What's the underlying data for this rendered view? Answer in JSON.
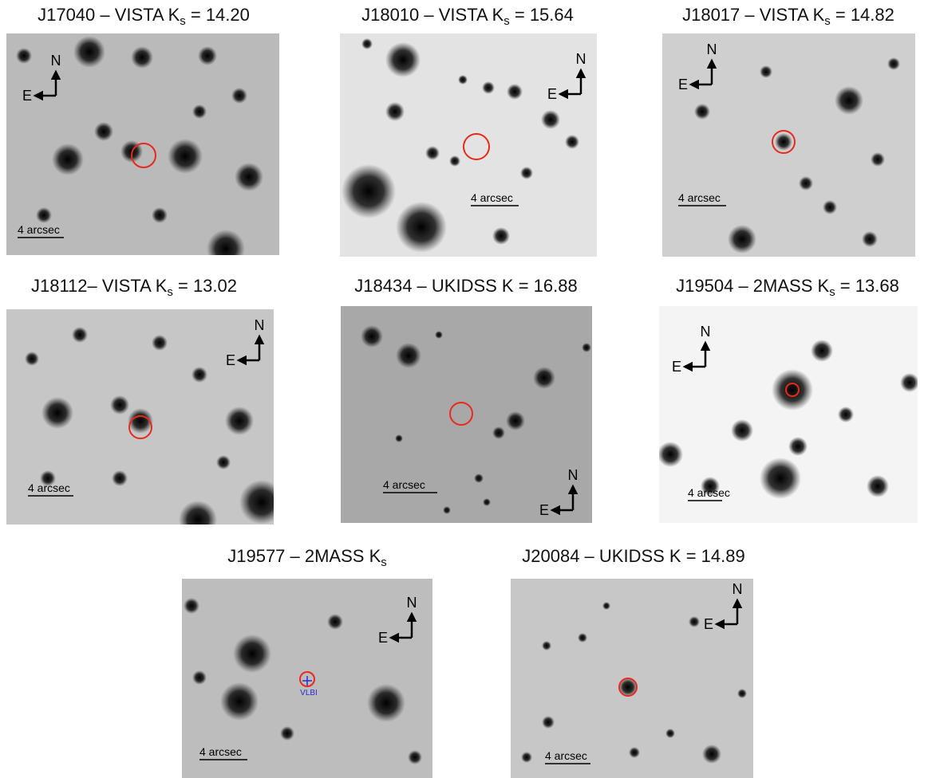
{
  "panels": [
    {
      "title": {
        "main": "J17040 – VISTA K",
        "sub": "s",
        "tail": " = 14.20"
      },
      "compass": {
        "north": "N",
        "east": "E"
      },
      "scale_bar": "4 arcsec"
    },
    {
      "title": {
        "main": "J18010 – VISTA K",
        "sub": "s",
        "tail": " = 15.64"
      },
      "compass": {
        "north": "N",
        "east": "E"
      },
      "scale_bar": "4 arcsec"
    },
    {
      "title": {
        "main": "J18017 – VISTA K",
        "sub": "s",
        "tail": " = 14.82"
      },
      "compass": {
        "north": "N",
        "east": "E"
      },
      "scale_bar": "4 arcsec"
    },
    {
      "title": {
        "main": "J18112– VISTA K",
        "sub": "s",
        "tail": " = 13.02"
      },
      "compass": {
        "north": "N",
        "east": "E"
      },
      "scale_bar": "4 arcsec"
    },
    {
      "title": {
        "main": "J18434 – UKIDSS K = 16.88"
      },
      "compass": {
        "north": "N",
        "east": "E"
      },
      "scale_bar": "4 arcsec"
    },
    {
      "title": {
        "main": "J19504 – 2MASS K",
        "sub": "s",
        "tail": " = 13.68"
      },
      "compass": {
        "north": "N",
        "east": "E"
      },
      "scale_bar": "4 arcsec"
    },
    {
      "title": {
        "main": "J19577 – 2MASS K",
        "sub": "s"
      },
      "compass": {
        "north": "N",
        "east": "E"
      },
      "scale_bar": "4 arcsec",
      "marker_label": "VLBI"
    },
    {
      "title": {
        "main": "J20084 – UKIDSS K = 14.89"
      },
      "compass": {
        "north": "N",
        "east": "E"
      },
      "scale_bar": "4 arcsec"
    }
  ]
}
